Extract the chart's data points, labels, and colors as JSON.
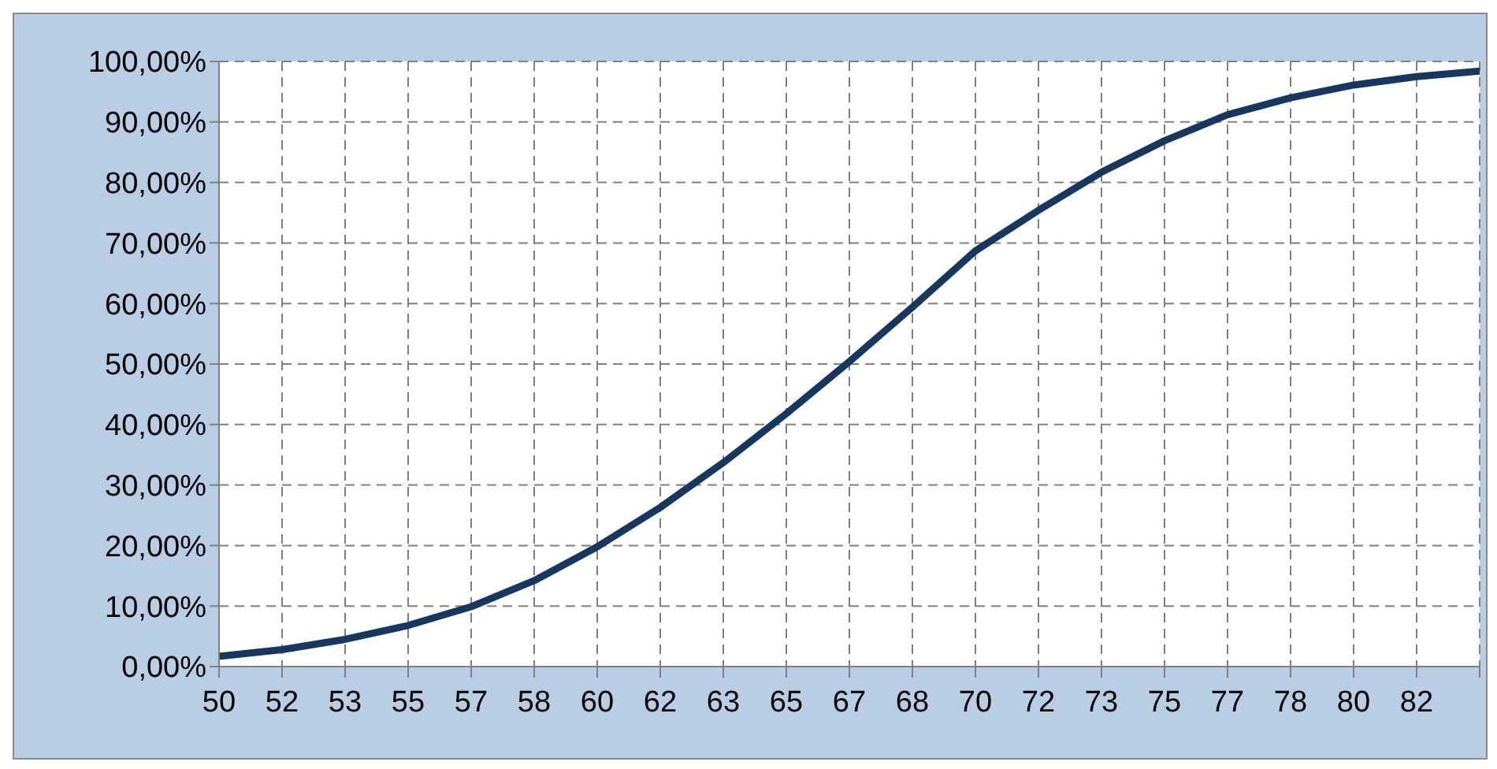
{
  "chart_data": {
    "type": "line",
    "categories": [
      "50",
      "52",
      "53",
      "55",
      "57",
      "58",
      "60",
      "62",
      "63",
      "65",
      "67",
      "68",
      "70",
      "72",
      "73",
      "75",
      "77",
      "78",
      "80",
      "82",
      null
    ],
    "series": [
      {
        "color": "#17375e",
        "values": [
          1.7,
          2.8,
          4.5,
          6.8,
          9.9,
          14.2,
          19.8,
          26.3,
          33.7,
          41.8,
          50.4,
          59.4,
          68.7,
          75.4,
          81.7,
          86.9,
          91.2,
          94.0,
          96.1,
          97.5,
          98.4
        ]
      }
    ],
    "ylim": [
      0,
      100
    ],
    "yticks": [
      {
        "value": 0,
        "label": "0,00%"
      },
      {
        "value": 10,
        "label": "10,00%"
      },
      {
        "value": 20,
        "label": "20,00%"
      },
      {
        "value": 30,
        "label": "30,00%"
      },
      {
        "value": 40,
        "label": "40,00%"
      },
      {
        "value": 50,
        "label": "50,00%"
      },
      {
        "value": 60,
        "label": "60,00%"
      },
      {
        "value": 70,
        "label": "70,00%"
      },
      {
        "value": 80,
        "label": "80,00%"
      },
      {
        "value": 90,
        "label": "90,00%"
      },
      {
        "value": 100,
        "label": "100,00%"
      }
    ],
    "grid": true,
    "legend": false,
    "marker": "none",
    "line_style": "solid"
  }
}
